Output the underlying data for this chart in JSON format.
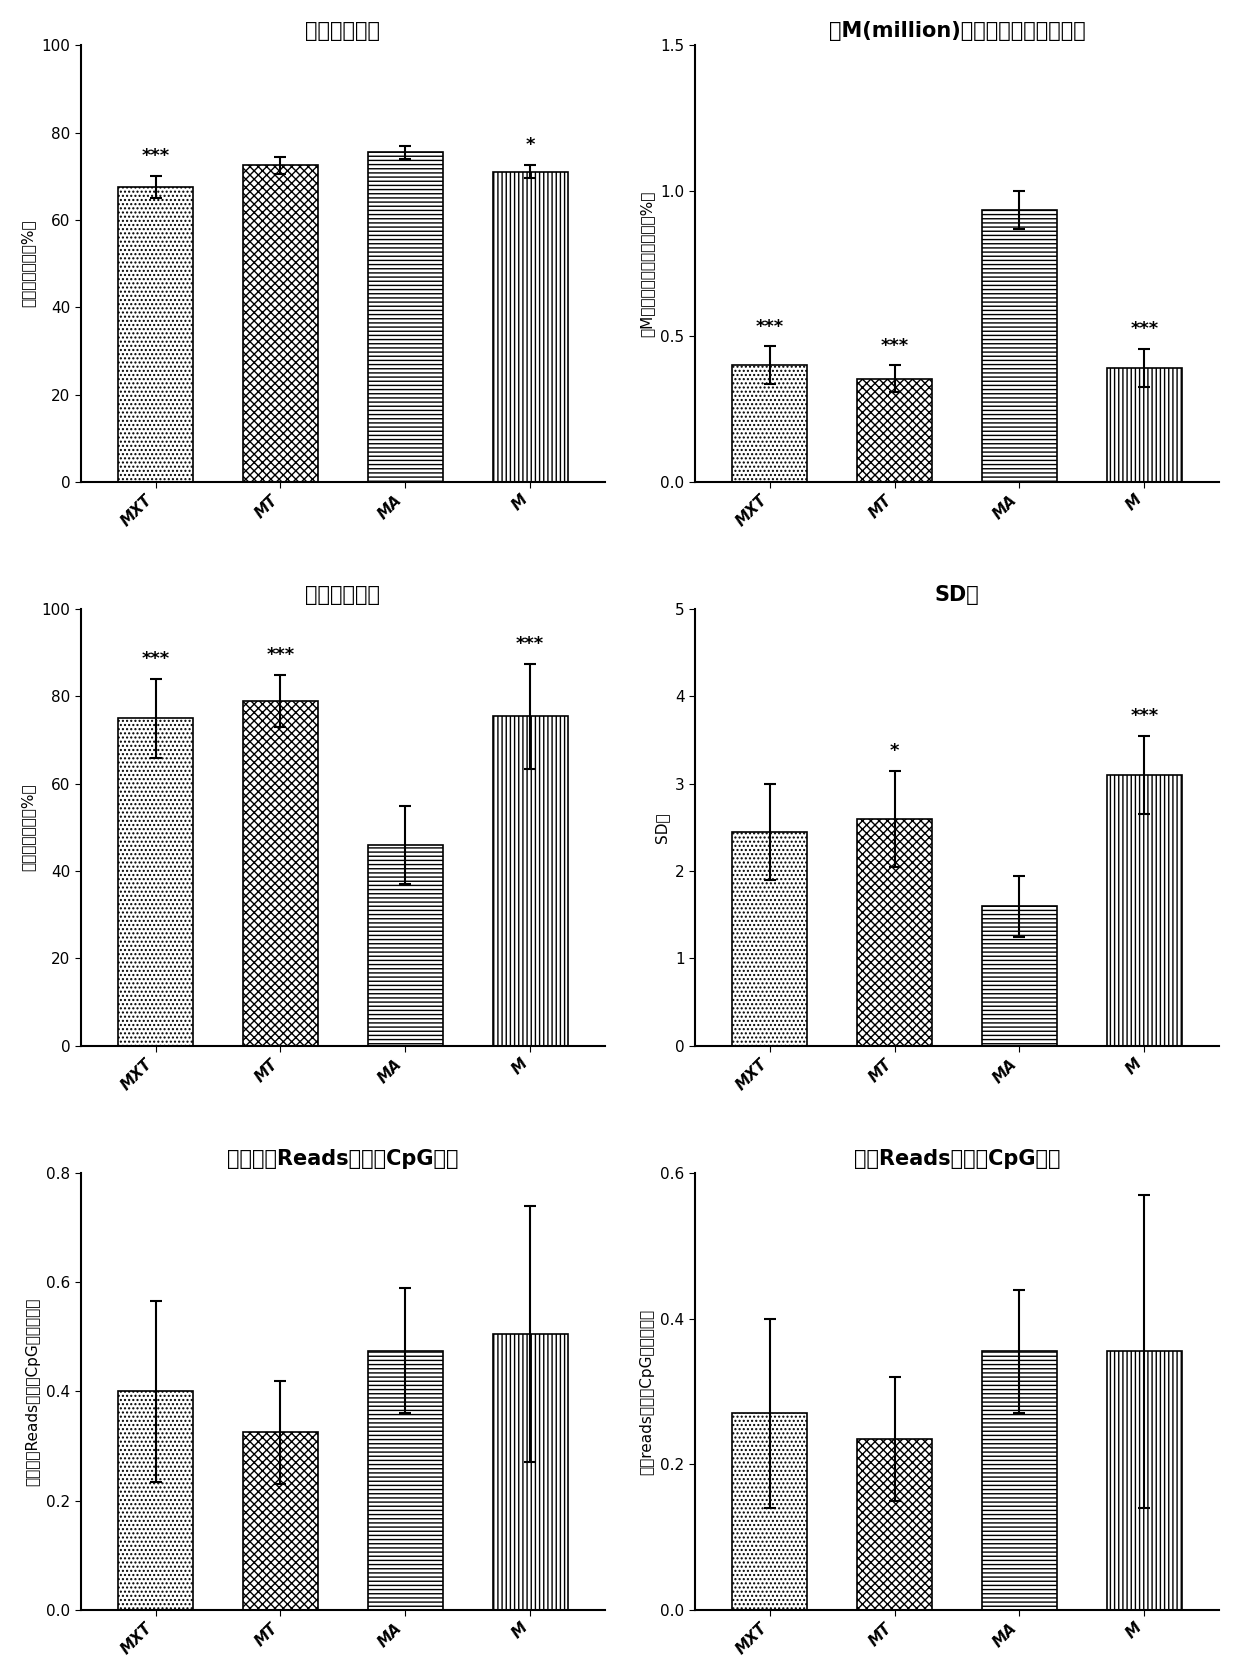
{
  "plots": [
    {
      "title": "基因组比对率",
      "ylabel": "基因组比对率（%）",
      "ylabel_chars": [
        "基",
        "因",
        "组",
        "比",
        "对",
        "率",
        "（",
        "%",
        "）"
      ],
      "categories": [
        "MXT",
        "MT",
        "MA",
        "M"
      ],
      "values": [
        67.5,
        72.5,
        75.5,
        71.0
      ],
      "errors": [
        2.5,
        2.0,
        1.5,
        1.5
      ],
      "significance": [
        "***",
        "",
        "",
        "*"
      ],
      "ylim": [
        0,
        100
      ],
      "yticks": [
        0,
        20,
        40,
        60,
        80,
        100
      ]
    },
    {
      "title": "每M(million)数据量覆盖基因组比例",
      "ylabel": "每M数据量覆盖基因组比例（%）",
      "ylabel_chars": [
        "每",
        "M",
        "数",
        "据",
        "量",
        "覆",
        "盖",
        "基",
        "因",
        "组",
        "比",
        "例",
        "（",
        "%",
        "）"
      ],
      "categories": [
        "MXT",
        "MT",
        "MA",
        "M"
      ],
      "values": [
        0.4,
        0.355,
        0.935,
        0.39
      ],
      "errors": [
        0.065,
        0.045,
        0.065,
        0.065
      ],
      "significance": [
        "***",
        "***",
        "",
        "***"
      ],
      "ylim": [
        0,
        1.5
      ],
      "yticks": [
        0.0,
        0.5,
        1.0,
        1.5
      ]
    },
    {
      "title": "冗余序列比例",
      "ylabel": "冗余序列比例（%）",
      "ylabel_chars": [
        "冗",
        "余",
        "序",
        "列",
        "比",
        "例",
        "（",
        "%",
        "）"
      ],
      "categories": [
        "MXT",
        "MT",
        "MA",
        "M"
      ],
      "values": [
        75.0,
        79.0,
        46.0,
        75.5
      ],
      "errors": [
        9.0,
        6.0,
        9.0,
        12.0
      ],
      "significance": [
        "***",
        "***",
        "",
        "***"
      ],
      "ylim": [
        0,
        100
      ],
      "yticks": [
        0,
        20,
        40,
        60,
        80,
        100
      ]
    },
    {
      "title": "SD值",
      "ylabel": "SD值",
      "ylabel_chars": [
        "S",
        "D",
        "值"
      ],
      "categories": [
        "MXT",
        "MT",
        "MA",
        "M"
      ],
      "values": [
        2.45,
        2.6,
        1.6,
        3.1
      ],
      "errors": [
        0.55,
        0.55,
        0.35,
        0.45
      ],
      "significance": [
        "",
        "*",
        "",
        "***"
      ],
      "ylim": [
        0,
        5
      ],
      "yticks": [
        0,
        1,
        2,
        3,
        4,
        5
      ]
    },
    {
      "title": "每个有效Reads覆盖的CpG位点",
      "ylabel": "每个有效Reads覆盖的CpG位点（个）",
      "ylabel_chars": [
        "每",
        "个",
        "有",
        "效",
        "R",
        "e",
        "a",
        "d",
        "s",
        "覆",
        "盖",
        "的",
        "C",
        "p",
        "G",
        "位",
        "点",
        "（",
        "个",
        "）"
      ],
      "categories": [
        "MXT",
        "MT",
        "MA",
        "M"
      ],
      "values": [
        0.4,
        0.325,
        0.475,
        0.505
      ],
      "errors": [
        0.165,
        0.095,
        0.115,
        0.235
      ],
      "significance": [
        "",
        "",
        "",
        ""
      ],
      "ylim": [
        0,
        0.8
      ],
      "yticks": [
        0.0,
        0.2,
        0.4,
        0.6,
        0.8
      ]
    },
    {
      "title": "每个Reads覆盖的CpG位点",
      "ylabel": "每个reads覆盖的CpG位点（个）",
      "ylabel_chars": [
        "每",
        "个",
        "r",
        "e",
        "a",
        "d",
        "s",
        "覆",
        "盖",
        "的",
        "C",
        "p",
        "G",
        "位",
        "点",
        "（",
        "个",
        "）"
      ],
      "categories": [
        "MXT",
        "MT",
        "MA",
        "M"
      ],
      "values": [
        0.27,
        0.235,
        0.355,
        0.355
      ],
      "errors": [
        0.13,
        0.085,
        0.085,
        0.215
      ],
      "significance": [
        "",
        "",
        "",
        ""
      ],
      "ylim": [
        0,
        0.6
      ],
      "yticks": [
        0.0,
        0.2,
        0.4,
        0.6
      ]
    }
  ],
  "background_color": "#ffffff",
  "title_fontsize": 15,
  "label_fontsize": 11,
  "tick_fontsize": 11,
  "sig_fontsize": 13
}
